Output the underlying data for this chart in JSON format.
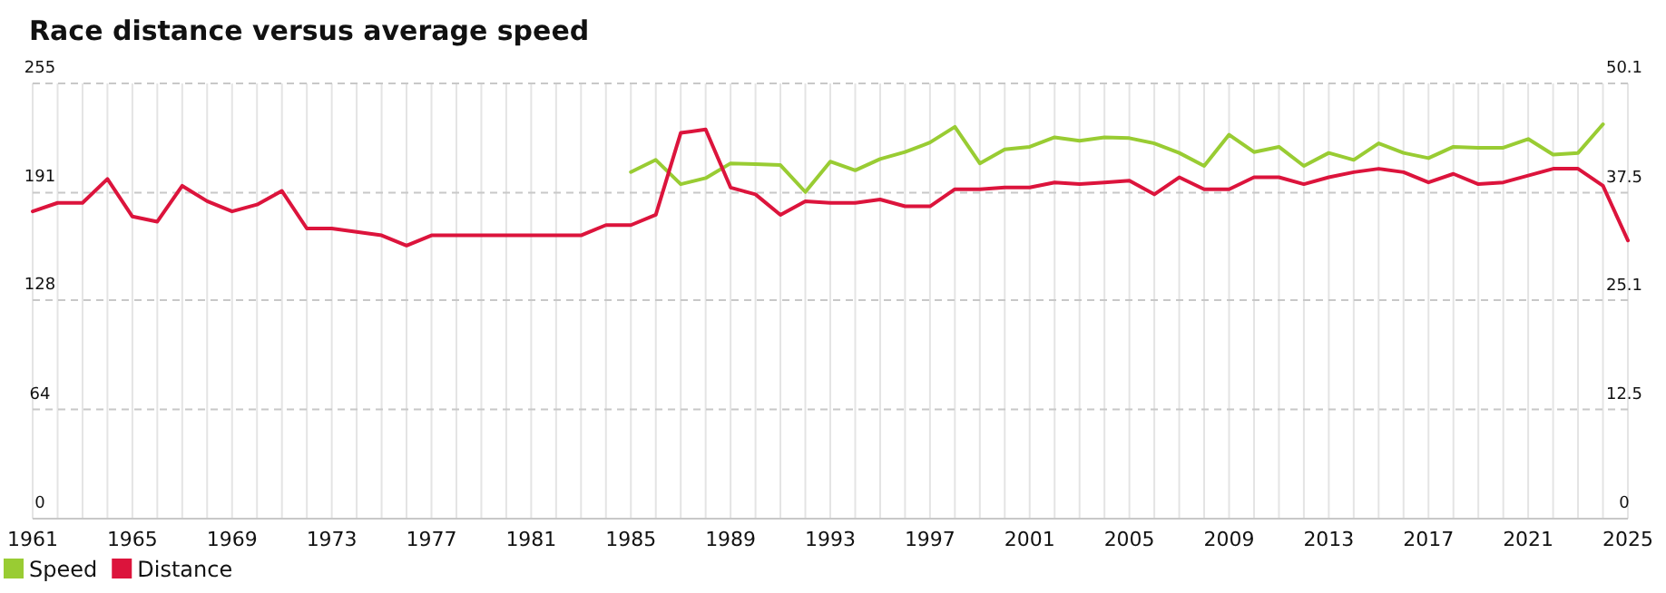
{
  "chart_data": {
    "type": "line",
    "title": "Race distance versus average speed",
    "x": [
      1961,
      1962,
      1963,
      1964,
      1965,
      1966,
      1967,
      1968,
      1969,
      1970,
      1971,
      1972,
      1973,
      1974,
      1975,
      1976,
      1977,
      1978,
      1979,
      1980,
      1981,
      1982,
      1983,
      1984,
      1985,
      1986,
      1987,
      1988,
      1989,
      1990,
      1991,
      1992,
      1993,
      1994,
      1995,
      1996,
      1997,
      1998,
      1999,
      2000,
      2001,
      2002,
      2003,
      2004,
      2005,
      2006,
      2007,
      2008,
      2009,
      2010,
      2011,
      2012,
      2013,
      2014,
      2015,
      2016,
      2017,
      2018,
      2019,
      2020,
      2021,
      2022,
      2023,
      2024,
      2025
    ],
    "series": [
      {
        "name": "Speed",
        "color": "#99cc33",
        "axis": "y2",
        "values": [
          null,
          null,
          null,
          null,
          null,
          null,
          null,
          null,
          null,
          null,
          null,
          null,
          null,
          null,
          null,
          null,
          null,
          null,
          null,
          null,
          null,
          null,
          null,
          null,
          39.9,
          41.3,
          38.5,
          39.2,
          40.9,
          40.8,
          40.7,
          37.6,
          41.1,
          40.1,
          41.4,
          42.2,
          43.3,
          45.1,
          40.9,
          42.5,
          42.8,
          43.9,
          43.5,
          43.9,
          43.8,
          43.2,
          42.1,
          40.6,
          44.2,
          42.2,
          42.8,
          40.6,
          42.1,
          41.3,
          43.2,
          42.1,
          41.5,
          42.8,
          42.7,
          42.7,
          43.7,
          41.9,
          42.1,
          45.4,
          null
        ]
      },
      {
        "name": "Distance",
        "color": "#dc143c",
        "values": [
          180,
          185,
          185,
          199,
          177,
          174,
          195,
          186,
          180,
          184,
          192,
          170,
          170,
          168,
          166,
          160,
          166,
          166,
          166,
          166,
          166,
          166,
          166,
          172,
          172,
          178,
          226,
          228,
          194,
          190,
          178,
          186,
          185,
          185,
          187,
          183,
          183,
          193,
          193,
          194,
          194,
          197,
          196,
          197,
          198,
          190,
          200,
          193,
          193,
          200,
          200,
          196,
          200,
          203,
          205,
          203,
          197,
          202,
          196,
          197,
          201,
          205,
          205,
          195,
          163
        ]
      }
    ],
    "xlim": [
      1961,
      2025
    ],
    "xticks": [
      1961,
      {
        "value": 1962,
        "label": null
      },
      {
        "value": 1963,
        "label": null
      },
      {
        "value": 1964,
        "label": null
      },
      1965,
      {
        "value": 1966,
        "label": null
      },
      {
        "value": 1967,
        "label": null
      },
      {
        "value": 1968,
        "label": null
      },
      1969,
      {
        "value": 1970,
        "label": null
      },
      {
        "value": 1971,
        "label": null
      },
      {
        "value": 1972,
        "label": null
      },
      1973,
      {
        "value": 1974,
        "label": null
      },
      {
        "value": 1975,
        "label": null
      },
      {
        "value": 1976,
        "label": null
      },
      1977,
      {
        "value": 1978,
        "label": null
      },
      {
        "value": 1979,
        "label": null
      },
      {
        "value": 1980,
        "label": null
      },
      1981,
      {
        "value": 1982,
        "label": null
      },
      {
        "value": 1983,
        "label": null
      },
      {
        "value": 1984,
        "label": null
      },
      1985,
      {
        "value": 1986,
        "label": null
      },
      {
        "value": 1987,
        "label": null
      },
      {
        "value": 1988,
        "label": null
      },
      1989,
      {
        "value": 1990,
        "label": null
      },
      {
        "value": 1991,
        "label": null
      },
      {
        "value": 1992,
        "label": null
      },
      1993,
      {
        "value": 1994,
        "label": null
      },
      {
        "value": 1995,
        "label": null
      },
      {
        "value": 1996,
        "label": null
      },
      1997,
      {
        "value": 1998,
        "label": null
      },
      {
        "value": 1999,
        "label": null
      },
      {
        "value": 2000,
        "label": null
      },
      2001,
      {
        "value": 2002,
        "label": null
      },
      {
        "value": 2003,
        "label": null
      },
      {
        "value": 2004,
        "label": null
      },
      2005,
      {
        "value": 2006,
        "label": null
      },
      {
        "value": 2007,
        "label": null
      },
      {
        "value": 2008,
        "label": null
      },
      2009,
      {
        "value": 2010,
        "label": null
      },
      {
        "value": 2011,
        "label": null
      },
      {
        "value": 2012,
        "label": null
      },
      2013,
      {
        "value": 2014,
        "label": null
      },
      {
        "value": 2015,
        "label": null
      },
      {
        "value": 2016,
        "label": null
      },
      2017,
      {
        "value": 2018,
        "label": null
      },
      {
        "value": 2019,
        "label": null
      },
      {
        "value": 2020,
        "label": null
      },
      2021,
      {
        "value": 2022,
        "label": null
      },
      {
        "value": 2023,
        "label": null
      },
      {
        "value": 2024,
        "label": null
      },
      2025
    ],
    "ylim": [
      0,
      255
    ],
    "yticks": [
      0,
      64,
      128,
      191,
      255
    ],
    "y2lim": [
      0,
      50.1
    ],
    "y2ticks": [
      0,
      12.5,
      25.1,
      37.5,
      50.1
    ],
    "grid": true,
    "legend": "bottom left",
    "marker": "none",
    "line_style": "solid"
  }
}
